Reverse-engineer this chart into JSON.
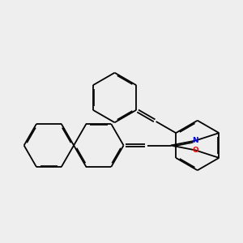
{
  "bg_color": "#eeeeee",
  "bond_color": "#000000",
  "N_color": "#0000ff",
  "O_color": "#ff0000",
  "lw": 1.3,
  "dbo": 0.045,
  "figsize": [
    3.0,
    3.0
  ],
  "dpi": 100,
  "xlim": [
    -5.5,
    8.5
  ],
  "ylim": [
    -3.0,
    3.0
  ]
}
